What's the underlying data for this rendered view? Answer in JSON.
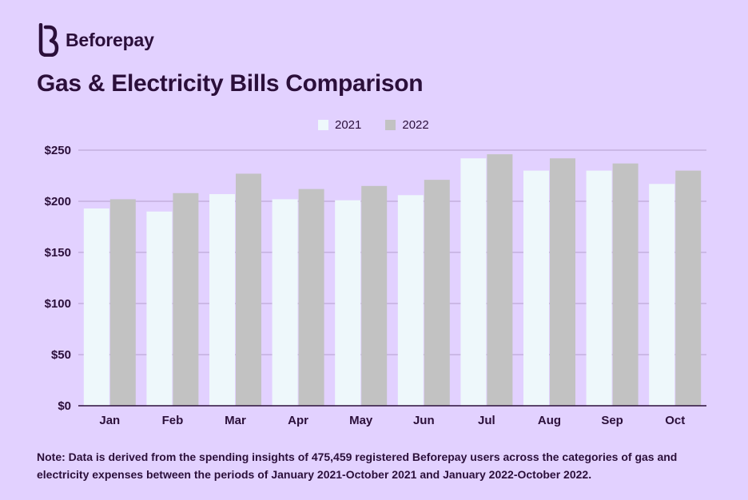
{
  "brand": {
    "name": "Beforepay"
  },
  "colors": {
    "background": "#e2d1ff",
    "text": "#2b0f3a",
    "grid": "#b49fcc",
    "series_2021": "#eef8fb",
    "series_2022": "#c2c2c2"
  },
  "chart_data": {
    "type": "bar",
    "title": "Gas & Electricity Bills Comparison",
    "xlabel": "",
    "ylabel": "",
    "categories": [
      "Jan",
      "Feb",
      "Mar",
      "Apr",
      "May",
      "Jun",
      "Jul",
      "Aug",
      "Sep",
      "Oct"
    ],
    "series": [
      {
        "name": "2021",
        "values": [
          193,
          190,
          207,
          202,
          201,
          206,
          242,
          230,
          230,
          217
        ]
      },
      {
        "name": "2022",
        "values": [
          202,
          208,
          227,
          212,
          215,
          221,
          246,
          242,
          237,
          230
        ]
      }
    ],
    "ylim": [
      0,
      250
    ],
    "yticks": [
      0,
      50,
      100,
      150,
      200,
      250
    ],
    "ytick_labels": [
      "$0",
      "$50",
      "$100",
      "$150",
      "$200",
      "$250"
    ],
    "grid": true,
    "legend_position": "top-center"
  },
  "note": "Note: Data is derived from the spending insights of 475,459 registered Beforepay users across the categories of gas and electricity expenses between the periods of January 2021-October 2021 and January 2022-October 2022."
}
